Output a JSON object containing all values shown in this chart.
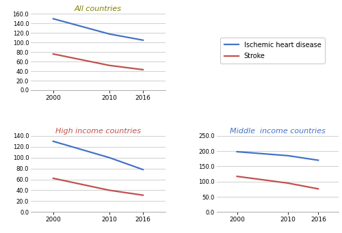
{
  "years": [
    2000,
    2010,
    2016
  ],
  "all_countries": {
    "title": "All countries",
    "title_color": "#7f7f00",
    "ischemic": [
      150.0,
      118.0,
      105.0
    ],
    "stroke": [
      76.0,
      52.0,
      43.0
    ],
    "ylim": [
      0,
      160.0
    ],
    "yticks": [
      0.0,
      20.0,
      40.0,
      60.0,
      80.0,
      100.0,
      120.0,
      140.0,
      160.0
    ]
  },
  "high_income": {
    "title": "High income countries",
    "title_color": "#c0504d",
    "ischemic": [
      130.0,
      100.0,
      78.0
    ],
    "stroke": [
      62.0,
      40.0,
      31.0
    ],
    "ylim": [
      0,
      140.0
    ],
    "yticks": [
      0.0,
      20.0,
      40.0,
      60.0,
      80.0,
      100.0,
      120.0,
      140.0
    ]
  },
  "middle_income": {
    "title": "Middle  income countries",
    "title_color": "#4472c4",
    "ischemic": [
      198.0,
      185.0,
      170.0
    ],
    "stroke": [
      117.0,
      95.0,
      76.0
    ],
    "ylim": [
      0,
      250.0
    ],
    "yticks": [
      0.0,
      50.0,
      100.0,
      150.0,
      200.0,
      250.0
    ]
  },
  "ischemic_color": "#4472c4",
  "stroke_color": "#c0504d",
  "line_width": 1.6,
  "legend_labels": [
    "Ischemic heart disease",
    "Stroke"
  ],
  "bg_color": "#ffffff",
  "grid_color": "#c8c8c8"
}
